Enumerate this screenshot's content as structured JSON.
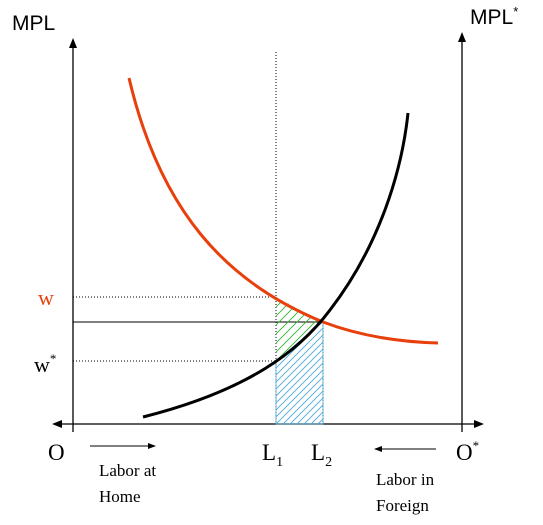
{
  "labels": {
    "mpl": "MPL",
    "mpl_star_base": "MPL",
    "mpl_star_sup": "*",
    "w": "w",
    "w_star_base": "w",
    "w_star_sup": "*",
    "origin": "O",
    "origin_star_base": "O",
    "origin_star_sup": "*",
    "l1_base": "L",
    "l1_sub": "1",
    "l2_base": "L",
    "l2_sub": "2",
    "labor_home_line1": "Labor at",
    "labor_home_line2": "Home",
    "labor_foreign_line1": "Labor in",
    "labor_foreign_line2": "Foreign"
  },
  "colors": {
    "home_mpl_curve": "#000000",
    "foreign_mpl_curve": "#e8400c",
    "w_label": "#e8400c",
    "green_hatch": "#2fb52f",
    "blue_hatch": "#4aa8d8",
    "axis": "#000000"
  }
}
